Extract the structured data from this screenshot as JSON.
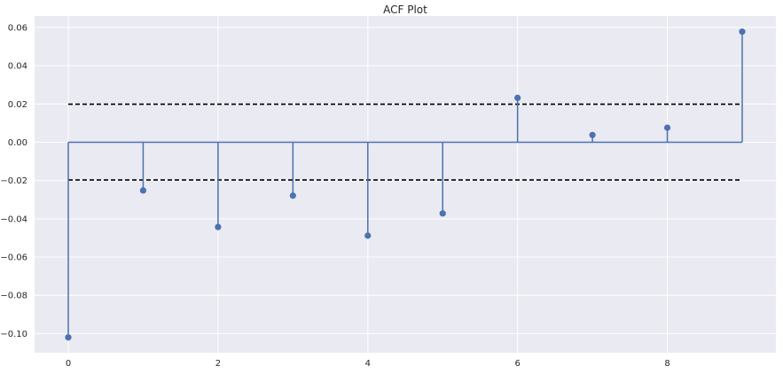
{
  "chart_data": {
    "type": "stem",
    "title": "ACF Plot",
    "xlabel": "",
    "ylabel": "",
    "x": [
      0,
      1,
      2,
      3,
      4,
      5,
      6,
      7,
      8,
      9
    ],
    "values": [
      -0.102,
      -0.0252,
      -0.0443,
      -0.0279,
      -0.0488,
      -0.0372,
      0.0232,
      0.0038,
      0.0076,
      0.0578
    ],
    "confidence_band": [
      -0.0197,
      0.0199
    ],
    "baseline": 0,
    "xlim": [
      -0.45,
      9.45
    ],
    "ylim": [
      -0.11,
      0.066
    ],
    "xticks": [
      0,
      2,
      4,
      6,
      8
    ],
    "yticks": [
      -0.1,
      -0.08,
      -0.06,
      -0.04,
      -0.02,
      0.0,
      0.02,
      0.04,
      0.06
    ],
    "ytick_labels": [
      "−0.10",
      "−0.08",
      "−0.06",
      "−0.04",
      "−0.02",
      "0.00",
      "0.02",
      "0.04",
      "0.06"
    ],
    "grid": true,
    "colors": {
      "background": "#EAEAF2",
      "grid": "#FFFFFF",
      "stem": "#4C72B0",
      "band": "#000000"
    }
  }
}
